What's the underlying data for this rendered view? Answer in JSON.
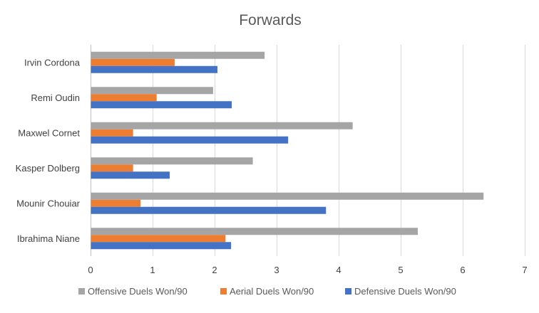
{
  "chart_data": {
    "type": "bar",
    "orientation": "horizontal",
    "title": "Forwards",
    "categories": [
      "Irvin Cordona",
      "Remi Oudin",
      "Maxwel Cornet",
      "Kasper Dolberg",
      "Mounir Chouiar",
      "Ibrahima Niane"
    ],
    "series": [
      {
        "name": "Offensive Duels Won/90",
        "color": "#a5a5a5",
        "values": [
          2.8,
          1.97,
          4.22,
          2.61,
          6.33,
          5.27
        ]
      },
      {
        "name": "Aerial Duels Won/90",
        "color": "#ed7d31",
        "values": [
          1.35,
          1.06,
          0.68,
          0.68,
          0.8,
          2.17
        ]
      },
      {
        "name": "Defensive Duels Won/90",
        "color": "#4472c4",
        "values": [
          2.04,
          2.27,
          3.18,
          1.27,
          3.79,
          2.26
        ]
      }
    ],
    "xlim": [
      0,
      7
    ],
    "ticks": [
      "0",
      "1",
      "2",
      "3",
      "4",
      "5",
      "6",
      "7"
    ],
    "grid": true,
    "legend": "bottom"
  }
}
